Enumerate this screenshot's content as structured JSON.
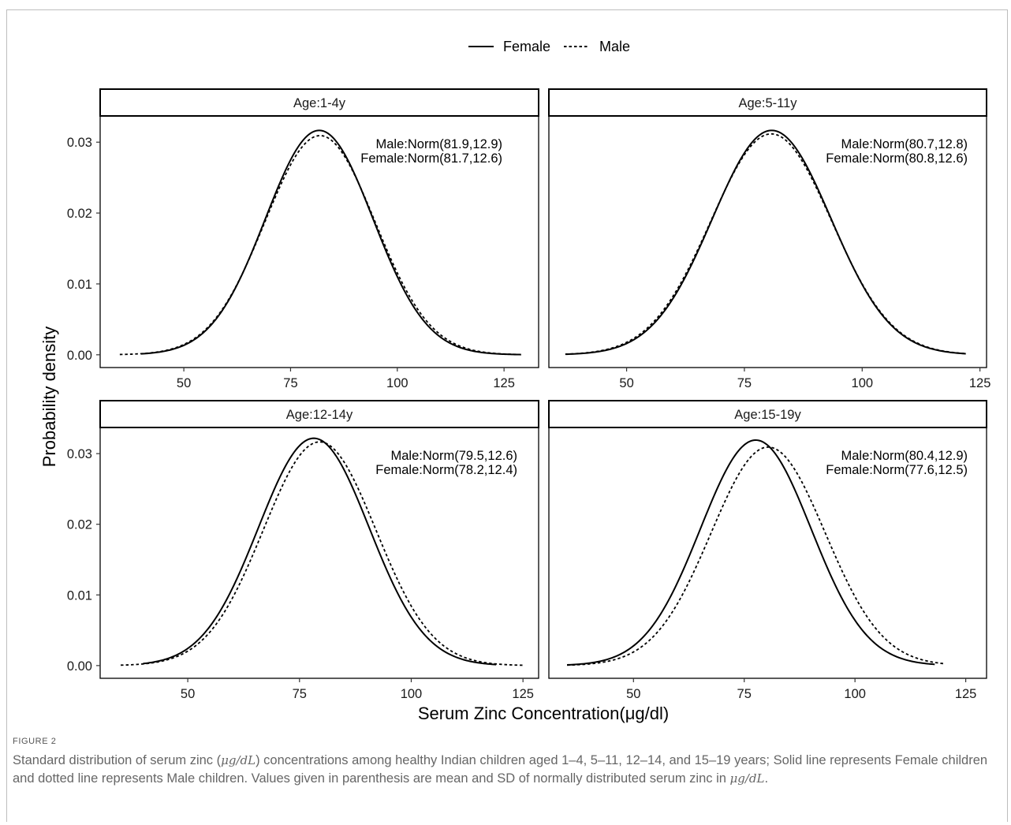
{
  "chart_data": {
    "type": "line",
    "legend": {
      "position": "top",
      "entries": [
        {
          "name": "Female",
          "linestyle": "solid"
        },
        {
          "name": "Male",
          "linestyle": "dotted"
        }
      ]
    },
    "xlabel": "Serum Zinc Concentration(μg/dl)",
    "ylabel": "Probability density",
    "xticks": [
      50,
      75,
      100,
      125
    ],
    "yticks": [
      0.0,
      0.01,
      0.02,
      0.03
    ],
    "ytick_labels": [
      "0.00",
      "0.01",
      "0.02",
      "0.03"
    ],
    "ylim": [
      -0.0018,
      0.0337
    ],
    "grid": false,
    "panels": [
      {
        "strip": "Age:1-4y",
        "xlim": [
          30.4,
          133.1
        ],
        "annotations": [
          "Male:Norm(81.9,12.9)",
          "Female:Norm(81.7,12.6)"
        ],
        "series": [
          {
            "name": "Female",
            "mean": 81.7,
            "sd": 12.6,
            "x_range": [
              40,
              129
            ]
          },
          {
            "name": "Male",
            "mean": 81.9,
            "sd": 12.9,
            "x_range": [
              35,
              128
            ]
          }
        ]
      },
      {
        "strip": "Age:5-11y",
        "xlim": [
          33.5,
          126.4
        ],
        "annotations": [
          "Male:Norm(80.7,12.8)",
          "Female:Norm(80.8,12.6)"
        ],
        "series": [
          {
            "name": "Female",
            "mean": 80.8,
            "sd": 12.6,
            "x_range": [
              37,
              122
            ]
          },
          {
            "name": "Male",
            "mean": 80.7,
            "sd": 12.8,
            "x_range": [
              37,
              122
            ]
          }
        ]
      },
      {
        "strip": "Age:12-14y",
        "xlim": [
          30.4,
          128.5
        ],
        "annotations": [
          "Male:Norm(79.5,12.6)",
          "Female:Norm(78.2,12.4)"
        ],
        "series": [
          {
            "name": "Female",
            "mean": 78.2,
            "sd": 12.4,
            "x_range": [
              40,
              119
            ]
          },
          {
            "name": "Male",
            "mean": 79.5,
            "sd": 12.6,
            "x_range": [
              35,
              125
            ]
          }
        ]
      },
      {
        "strip": "Age:15-19y",
        "xlim": [
          30.9,
          129.7
        ],
        "annotations": [
          "Male:Norm(80.4,12.9)",
          "Female:Norm(77.6,12.5)"
        ],
        "series": [
          {
            "name": "Female",
            "mean": 77.6,
            "sd": 12.5,
            "x_range": [
              35,
              118
            ]
          },
          {
            "name": "Male",
            "mean": 80.4,
            "sd": 12.9,
            "x_range": [
              35,
              120
            ]
          }
        ]
      }
    ]
  },
  "caption": {
    "label": "FIGURE 2",
    "part1": "Standard distribution of serum zinc (",
    "unit1": "μg/dL",
    "part2": ") concentrations among healthy Indian children aged 1–4, 5–11, 12–14, and 15–19 years; Solid line represents Female children and dotted line represents Male children. Values given in parenthesis are mean and SD of normally distributed serum zinc in ",
    "unit2": "μg/dL",
    "part3": "."
  }
}
